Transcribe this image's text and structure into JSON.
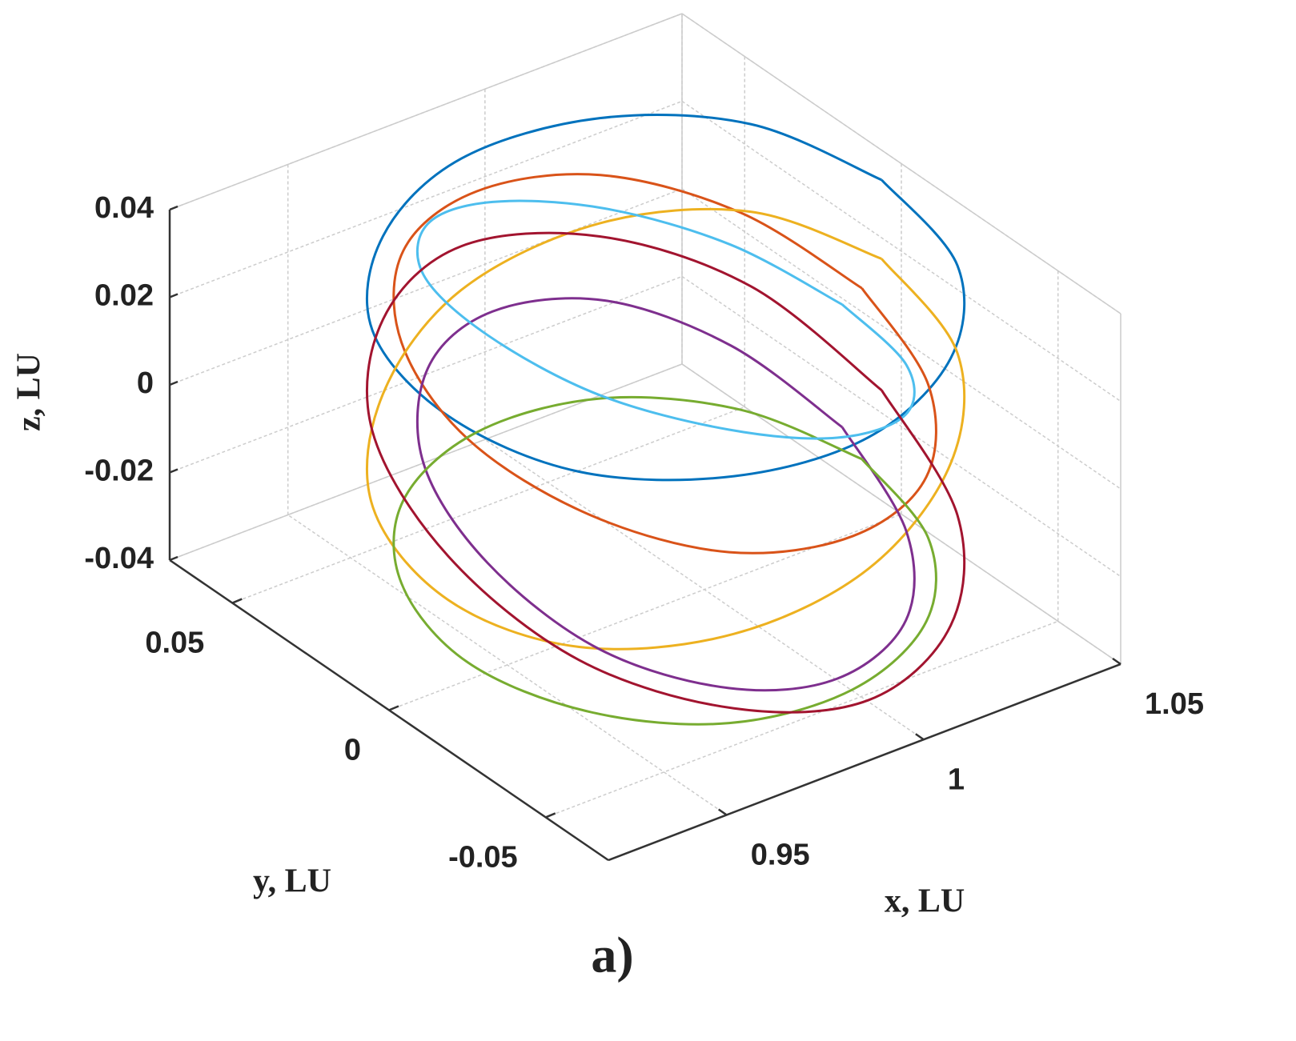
{
  "chart_data": {
    "type": "line3d",
    "xlabel": "x, LU",
    "ylabel": "y, LU",
    "zlabel": "z, LU",
    "panel_label": "a)",
    "xlim": [
      0.92,
      1.05
    ],
    "xticks": [
      0.95,
      1,
      1.05
    ],
    "ylim": [
      -0.07,
      0.07
    ],
    "yticks": [
      -0.05,
      0,
      0.05
    ],
    "zlim": [
      -0.04,
      0.04
    ],
    "zticks": [
      -0.04,
      -0.02,
      0,
      0.02,
      0.04
    ],
    "grid": true,
    "series": [
      {
        "color": "#0072BD",
        "x": [
          1.045,
          1.038,
          1.018,
          0.99,
          0.963,
          0.942,
          0.935,
          0.942,
          0.963,
          0.99,
          1.018,
          1.038,
          1.045
        ],
        "y": [
          0,
          0.033,
          0.056,
          0.065,
          0.056,
          0.033,
          0,
          -0.033,
          -0.056,
          -0.065,
          -0.056,
          -0.033,
          0
        ],
        "z": [
          0.038,
          0.037,
          0.034,
          0.03,
          0.026,
          0.023,
          0.022,
          0.023,
          0.026,
          0.03,
          0.034,
          0.037,
          0.038
        ]
      },
      {
        "color": "#D95319",
        "x": [
          1.04,
          1.033,
          1.015,
          0.99,
          0.965,
          0.947,
          0.94,
          0.947,
          0.965,
          0.99,
          1.015,
          1.033,
          1.04
        ],
        "y": [
          0,
          0.03,
          0.052,
          0.06,
          0.052,
          0.03,
          0,
          -0.03,
          -0.052,
          -0.06,
          -0.052,
          -0.03,
          0
        ],
        "z": [
          0.015,
          0.02,
          0.024,
          0.025,
          0.024,
          0.02,
          0.015,
          0.01,
          0.006,
          0.005,
          0.006,
          0.01,
          0.015
        ]
      },
      {
        "color": "#EDB120",
        "x": [
          1.045,
          1.038,
          1.018,
          0.99,
          0.963,
          0.942,
          0.935,
          0.942,
          0.963,
          0.99,
          1.018,
          1.038,
          1.045
        ],
        "y": [
          0,
          0.033,
          0.056,
          0.065,
          0.056,
          0.033,
          0,
          -0.033,
          -0.056,
          -0.065,
          -0.056,
          -0.033,
          0
        ],
        "z": [
          0.02,
          0.017,
          0.01,
          0,
          -0.01,
          -0.017,
          -0.02,
          -0.017,
          -0.01,
          0,
          0.01,
          0.017,
          0.02
        ]
      },
      {
        "color": "#7E2F8E",
        "x": [
          1.035,
          1.029,
          1.013,
          0.99,
          0.968,
          0.951,
          0.945,
          0.951,
          0.968,
          0.99,
          1.013,
          1.029,
          1.035
        ],
        "y": [
          0,
          0.028,
          0.048,
          0.055,
          0.048,
          0.028,
          0,
          -0.028,
          -0.048,
          -0.055,
          -0.048,
          -0.028,
          0
        ],
        "z": [
          -0.015,
          -0.008,
          -0.002,
          0,
          -0.002,
          -0.008,
          -0.015,
          -0.023,
          -0.028,
          -0.03,
          -0.028,
          -0.023,
          -0.015
        ]
      },
      {
        "color": "#77AC30",
        "x": [
          1.04,
          1.033,
          1.015,
          0.99,
          0.965,
          0.947,
          0.94,
          0.947,
          0.965,
          0.99,
          1.015,
          1.033,
          1.04
        ],
        "y": [
          0,
          0.03,
          0.052,
          0.06,
          0.052,
          0.03,
          0,
          -0.03,
          -0.052,
          -0.06,
          -0.052,
          -0.03,
          0
        ],
        "z": [
          -0.024,
          -0.025,
          -0.027,
          -0.03,
          -0.033,
          -0.035,
          -0.036,
          -0.035,
          -0.033,
          -0.03,
          -0.027,
          -0.025,
          -0.024
        ]
      },
      {
        "color": "#4DBEEE",
        "x": [
          1.035,
          1.029,
          1.013,
          0.99,
          0.968,
          0.951,
          0.945,
          0.951,
          0.968,
          0.99,
          1.013,
          1.029,
          1.035
        ],
        "y": [
          0,
          0.028,
          0.048,
          0.055,
          0.048,
          0.028,
          0,
          -0.028,
          -0.048,
          -0.055,
          -0.048,
          -0.028,
          0
        ],
        "z": [
          0.013,
          0.015,
          0.019,
          0.025,
          0.031,
          0.035,
          0.037,
          0.035,
          0.031,
          0.025,
          0.019,
          0.015,
          0.013
        ]
      },
      {
        "color": "#A2142F",
        "x": [
          1.045,
          1.038,
          1.018,
          0.99,
          0.963,
          0.942,
          0.935,
          0.942,
          0.963,
          0.99,
          1.018,
          1.038,
          1.045
        ],
        "y": [
          0,
          0.033,
          0.056,
          0.065,
          0.056,
          0.033,
          0,
          -0.033,
          -0.056,
          -0.065,
          -0.056,
          -0.033,
          0
        ],
        "z": [
          -0.01,
          0,
          0.007,
          0.01,
          0.007,
          0,
          -0.01,
          -0.02,
          -0.027,
          -0.03,
          -0.027,
          -0.02,
          -0.01
        ]
      }
    ]
  }
}
